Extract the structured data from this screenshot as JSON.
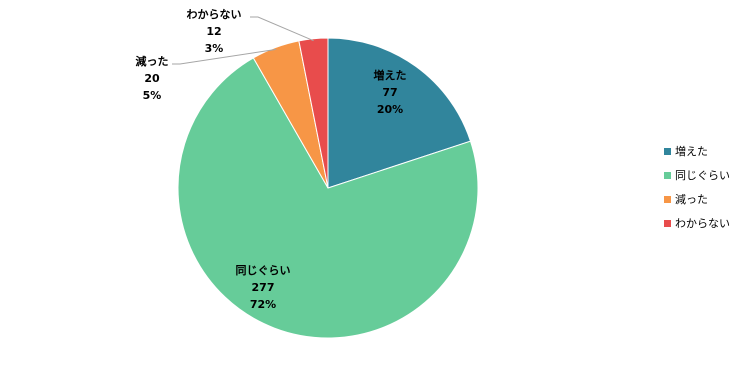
{
  "chart_data": {
    "type": "pie",
    "categories": [
      "増えた",
      "同じぐらい",
      "減った",
      "わからない"
    ],
    "values": [
      77,
      277,
      20,
      12
    ],
    "percent_labels": [
      "20%",
      "72%",
      "5%",
      "3%"
    ],
    "colors": [
      "#31859c",
      "#66cc99",
      "#f79646",
      "#e84c4c"
    ],
    "legend": "right"
  }
}
